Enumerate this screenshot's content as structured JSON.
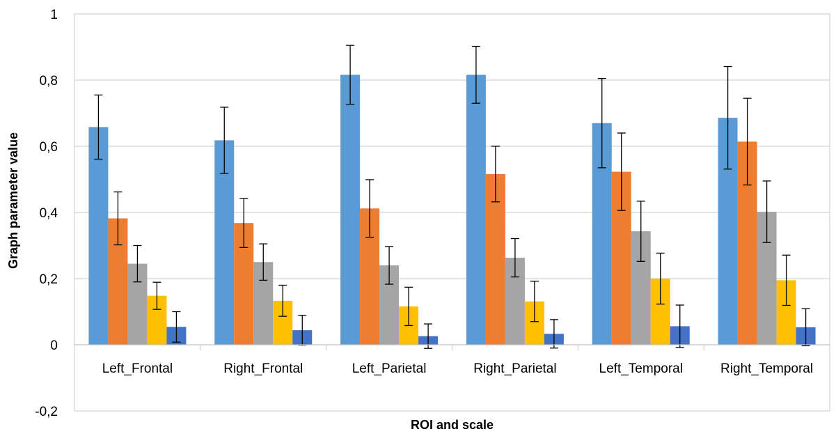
{
  "chart_data": {
    "type": "bar",
    "title": "",
    "xlabel": "ROI and scale",
    "ylabel": "Graph parameter value",
    "ylim": [
      -0.2,
      1
    ],
    "yticks": [
      -0.2,
      0,
      0.2,
      0.4,
      0.6,
      0.8,
      1
    ],
    "ytick_labels": [
      "-0,2",
      "0",
      "0,2",
      "0,4",
      "0,6",
      "0,8",
      "1"
    ],
    "grid": true,
    "legend": "none",
    "categories": [
      "Left_Frontal",
      "Right_Frontal",
      "Left_Parietal",
      "Right_Parietal",
      "Left_Temporal",
      "Right_Temporal"
    ],
    "series": [
      {
        "color": "#5B9BD5",
        "values": [
          0.658,
          0.618,
          0.816,
          0.816,
          0.67,
          0.686
        ],
        "errors": [
          0.097,
          0.1,
          0.089,
          0.086,
          0.135,
          0.155
        ]
      },
      {
        "color": "#ED7D31",
        "values": [
          0.382,
          0.368,
          0.412,
          0.516,
          0.523,
          0.614
        ],
        "errors": [
          0.08,
          0.074,
          0.087,
          0.084,
          0.117,
          0.131
        ]
      },
      {
        "color": "#A5A5A5",
        "values": [
          0.245,
          0.25,
          0.24,
          0.263,
          0.343,
          0.402
        ],
        "errors": [
          0.055,
          0.055,
          0.057,
          0.058,
          0.091,
          0.093
        ]
      },
      {
        "color": "#FFC000",
        "values": [
          0.148,
          0.133,
          0.116,
          0.131,
          0.2,
          0.195
        ],
        "errors": [
          0.041,
          0.047,
          0.058,
          0.061,
          0.077,
          0.076
        ]
      },
      {
        "color": "#4472C4",
        "values": [
          0.054,
          0.044,
          0.026,
          0.033,
          0.056,
          0.053
        ],
        "errors": [
          0.046,
          0.045,
          0.037,
          0.043,
          0.064,
          0.056
        ]
      }
    ]
  }
}
